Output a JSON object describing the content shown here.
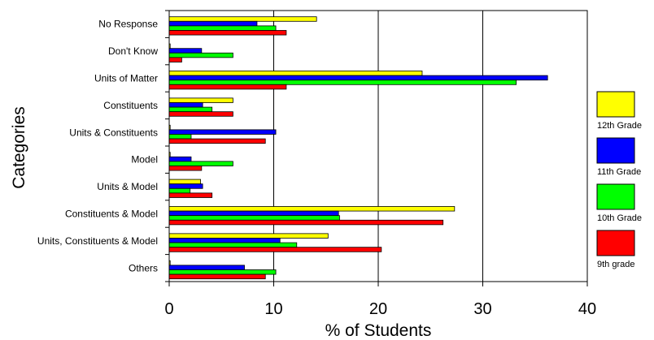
{
  "chart_data": {
    "type": "bar",
    "orientation": "horizontal",
    "xlabel": "% of Students",
    "ylabel": "Categories",
    "xlim": [
      0,
      40
    ],
    "xticks": [
      0,
      10,
      20,
      30,
      40
    ],
    "grid": "vertical gridlines at major ticks",
    "legend_position": "right",
    "categories": [
      "No Response",
      "Don't Know",
      "Units of Matter",
      "Constituents",
      "Units & Constituents",
      "Model",
      "Units & Model",
      "Constituents & Model",
      "Units, Constituents & Model",
      "Others"
    ],
    "series": [
      {
        "name": "12th Grade",
        "color": "#ffff00",
        "values": [
          14.1,
          0,
          24.2,
          6.1,
          0,
          0,
          3.0,
          27.3,
          15.2,
          0
        ]
      },
      {
        "name": "11th Grade",
        "color": "#0000ff",
        "values": [
          8.4,
          3.1,
          36.2,
          3.2,
          10.2,
          2.1,
          3.2,
          16.2,
          10.6,
          7.2
        ]
      },
      {
        "name": "10th Grade",
        "color": "#00ff00",
        "values": [
          10.2,
          6.1,
          33.2,
          4.1,
          2.1,
          6.1,
          2.0,
          16.3,
          12.2,
          10.2
        ]
      },
      {
        "name": "9th grade",
        "color": "#ff0000",
        "values": [
          11.2,
          1.2,
          11.2,
          6.1,
          9.2,
          3.1,
          4.1,
          26.2,
          20.3,
          9.2
        ]
      }
    ]
  }
}
